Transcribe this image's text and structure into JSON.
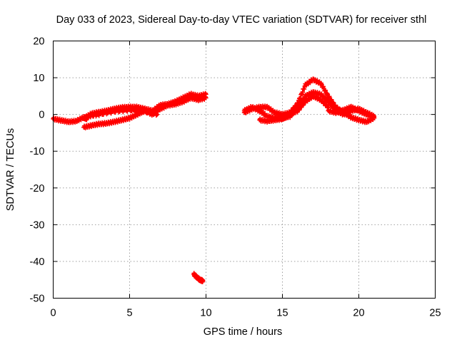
{
  "chart_data": {
    "type": "scatter",
    "title": "Day 033 of 2023, Sidereal Day-to-day VTEC variation (SDTVAR) for receiver sthl",
    "xlabel": "GPS time / hours",
    "ylabel": "SDTVAR / TECUs",
    "xlim": [
      0,
      25
    ],
    "ylim": [
      -50,
      20
    ],
    "xticks": [
      0,
      5,
      10,
      15,
      20,
      25
    ],
    "yticks": [
      -50,
      -40,
      -30,
      -20,
      -10,
      0,
      10,
      20
    ],
    "grid": true,
    "marker_color": "#ff0000",
    "series": [
      {
        "name": "sdtvar",
        "segments": [
          [
            [
              0.0,
              -1.2
            ],
            [
              0.5,
              -1.6
            ],
            [
              1.0,
              -2.0
            ],
            [
              1.5,
              -1.8
            ],
            [
              2.0,
              -0.8
            ],
            [
              2.2,
              -1.2
            ]
          ],
          [
            [
              2.0,
              -1.0
            ],
            [
              2.5,
              0.2
            ],
            [
              3.0,
              0.6
            ],
            [
              3.5,
              1.0
            ],
            [
              4.0,
              1.5
            ],
            [
              4.5,
              1.9
            ],
            [
              5.0,
              2.0
            ],
            [
              5.5,
              2.0
            ],
            [
              6.0,
              1.5
            ],
            [
              6.5,
              1.0
            ],
            [
              7.0,
              2.5
            ],
            [
              7.5,
              2.8
            ],
            [
              8.0,
              3.5
            ],
            [
              8.5,
              4.5
            ],
            [
              9.0,
              5.5
            ],
            [
              9.5,
              5.0
            ],
            [
              10.0,
              5.5
            ]
          ],
          [
            [
              2.0,
              -3.5
            ],
            [
              2.5,
              -3.0
            ],
            [
              3.0,
              -2.6
            ],
            [
              3.5,
              -2.4
            ],
            [
              4.0,
              -2.0
            ],
            [
              4.5,
              -1.5
            ],
            [
              5.0,
              -1.0
            ],
            [
              5.5,
              0.0
            ],
            [
              6.0,
              1.0
            ],
            [
              6.5,
              0.0
            ],
            [
              7.0,
              1.5
            ],
            [
              7.5,
              2.5
            ],
            [
              8.0,
              2.8
            ],
            [
              8.5,
              3.5
            ],
            [
              9.0,
              4.5
            ],
            [
              9.5,
              4.0
            ],
            [
              10.0,
              4.5
            ]
          ],
          [
            [
              2.3,
              -0.5
            ],
            [
              3.0,
              0.0
            ],
            [
              4.0,
              0.8
            ],
            [
              5.0,
              1.2
            ],
            [
              6.0,
              0.8
            ],
            [
              6.8,
              0.0
            ]
          ],
          [
            [
              9.2,
              -43.5
            ],
            [
              9.4,
              -44.3
            ],
            [
              9.6,
              -45.0
            ],
            [
              9.8,
              -45.3
            ]
          ],
          [
            [
              12.5,
              0.5
            ],
            [
              13.0,
              1.5
            ],
            [
              13.5,
              2.0
            ],
            [
              14.0,
              2.0
            ],
            [
              14.5,
              0.5
            ],
            [
              15.0,
              0.0
            ],
            [
              15.5,
              0.5
            ],
            [
              16.0,
              3.0
            ],
            [
              16.5,
              8.0
            ],
            [
              17.0,
              9.5
            ],
            [
              17.5,
              8.5
            ],
            [
              18.0,
              5.0
            ],
            [
              18.5,
              2.0
            ],
            [
              19.0,
              0.5
            ],
            [
              19.5,
              -0.8
            ],
            [
              20.0,
              -1.5
            ],
            [
              20.5,
              -2.0
            ],
            [
              21.0,
              -1.0
            ]
          ],
          [
            [
              12.5,
              1.0
            ],
            [
              13.0,
              2.0
            ],
            [
              13.5,
              1.0
            ],
            [
              14.0,
              -0.5
            ],
            [
              14.5,
              -1.0
            ],
            [
              15.0,
              -1.0
            ],
            [
              15.5,
              -0.5
            ],
            [
              16.0,
              2.0
            ],
            [
              16.5,
              5.0
            ],
            [
              17.0,
              6.0
            ],
            [
              17.5,
              5.5
            ],
            [
              18.0,
              3.5
            ],
            [
              18.5,
              1.0
            ],
            [
              19.0,
              0.0
            ],
            [
              19.5,
              1.0
            ],
            [
              20.0,
              1.5
            ],
            [
              20.5,
              0.5
            ],
            [
              21.0,
              -0.5
            ]
          ],
          [
            [
              13.5,
              -1.5
            ],
            [
              14.0,
              -1.8
            ],
            [
              14.5,
              -1.5
            ],
            [
              15.0,
              -1.2
            ],
            [
              15.5,
              0.0
            ],
            [
              16.0,
              1.0
            ],
            [
              16.5,
              3.5
            ],
            [
              17.0,
              5.0
            ],
            [
              17.5,
              4.0
            ],
            [
              18.0,
              2.0
            ]
          ],
          [
            [
              18.0,
              1.0
            ],
            [
              18.5,
              0.5
            ],
            [
              19.0,
              1.2
            ],
            [
              19.5,
              2.0
            ],
            [
              20.0,
              1.0
            ],
            [
              20.5,
              0.0
            ],
            [
              21.0,
              -0.8
            ]
          ]
        ]
      }
    ]
  }
}
